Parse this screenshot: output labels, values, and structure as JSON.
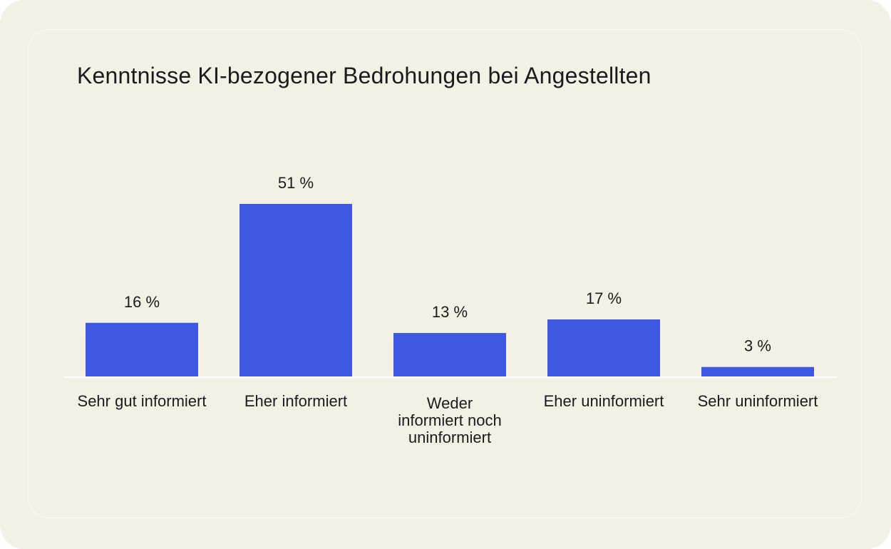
{
  "chart_data": {
    "type": "bar",
    "title": "Kenntnisse KI-bezogener Bedrohungen bei Angestellten",
    "categories": [
      [
        "Sehr gut informiert"
      ],
      [
        "Eher informiert"
      ],
      [
        "Weder",
        "informiert noch",
        "uninformiert"
      ],
      [
        "Eher uninformiert"
      ],
      [
        "Sehr uninformiert"
      ]
    ],
    "values": [
      16,
      51,
      13,
      17,
      3
    ],
    "value_labels": [
      "16 %",
      "51 %",
      "13 %",
      "17 %",
      "3 %"
    ],
    "xlabel": "",
    "ylabel": "",
    "ylim": [
      0,
      51
    ],
    "grid": false,
    "bar_color": "#3e58e4",
    "baseline_color": "#ffffff"
  }
}
